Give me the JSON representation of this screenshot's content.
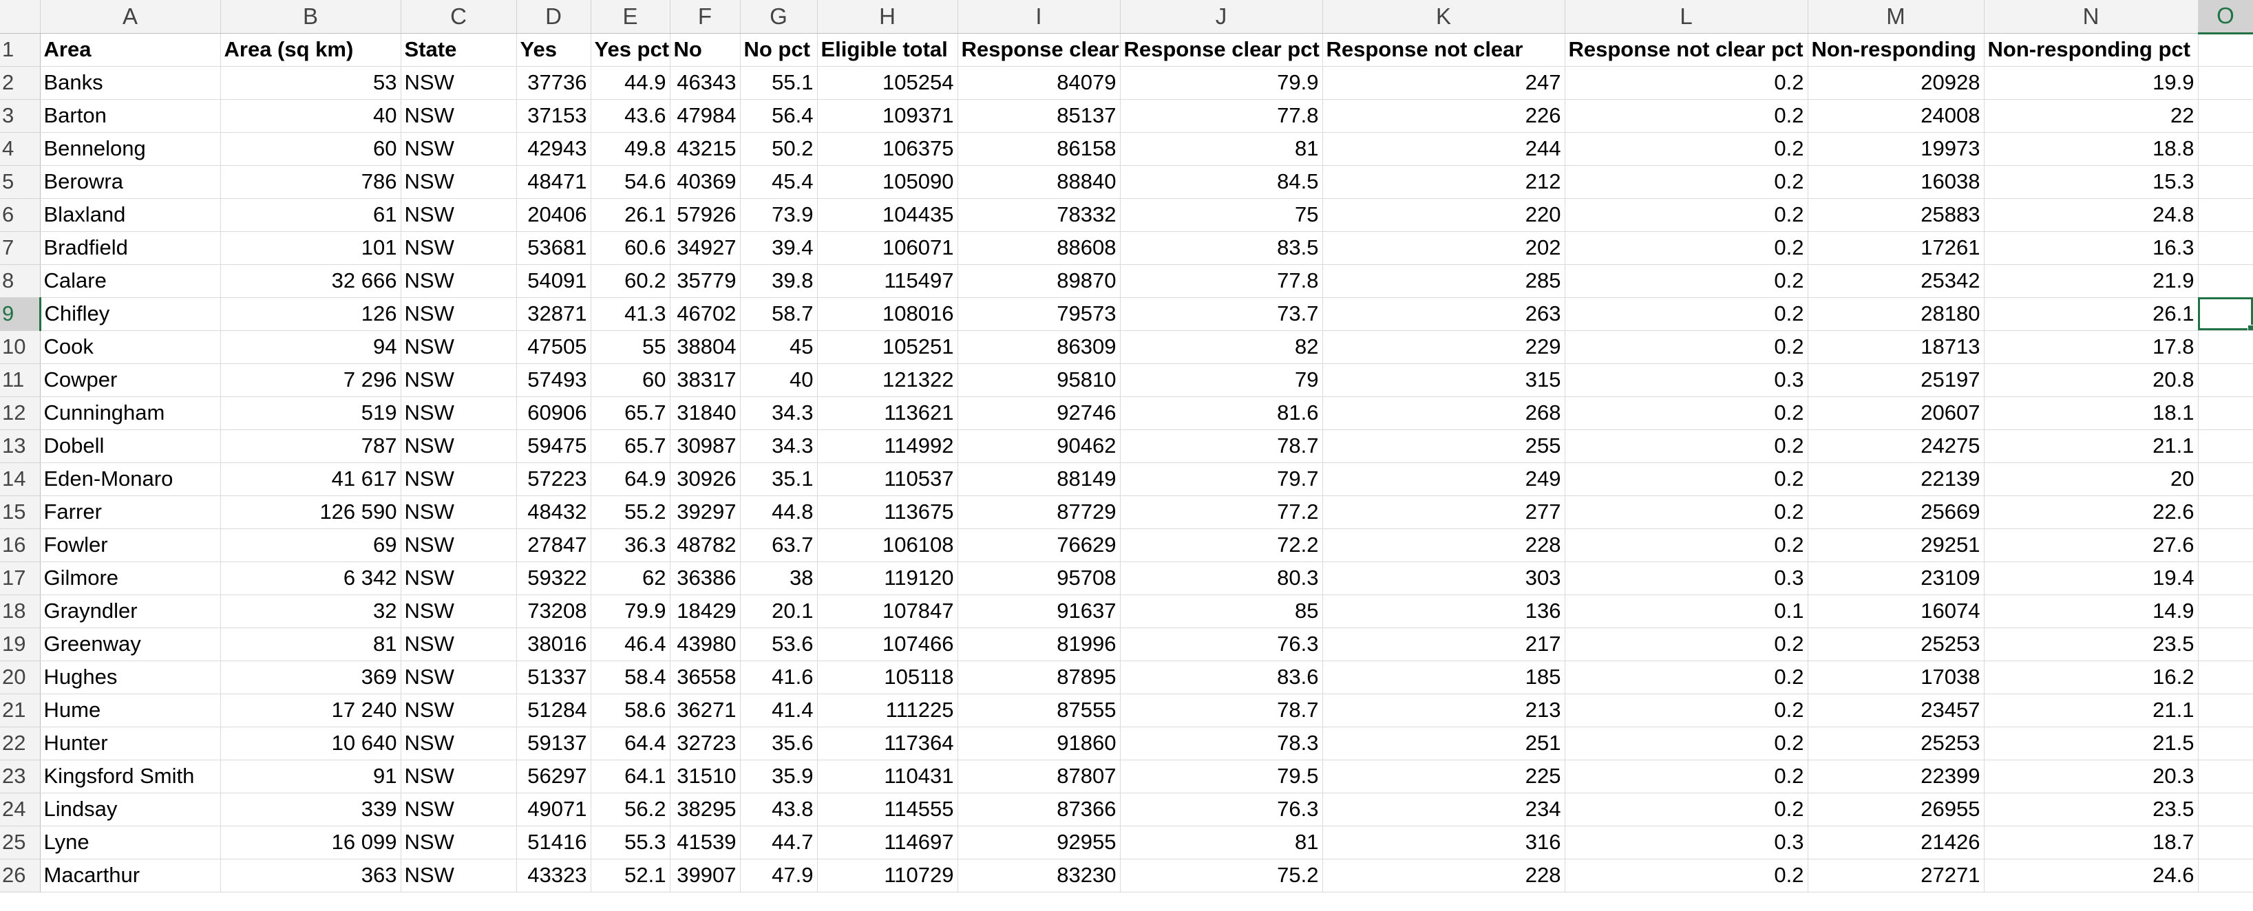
{
  "sheet": {
    "columns": [
      "A",
      "B",
      "C",
      "D",
      "E",
      "F",
      "G",
      "H",
      "I",
      "J",
      "K",
      "L",
      "M",
      "N",
      "O"
    ],
    "selected_column": "O",
    "active_cell": "O9",
    "headers": [
      "Area",
      "Area (sq km)",
      "State",
      "Yes",
      "Yes pct",
      "No",
      "No pct",
      "Eligible total",
      "Response clear",
      "Response clear pct",
      "Response not clear",
      "Response not clear pct",
      "Non-responding",
      "Non-responding pct",
      ""
    ],
    "rows": [
      [
        "Banks",
        "53",
        "NSW",
        "37736",
        "44.9",
        "46343",
        "55.1",
        "105254",
        "84079",
        "79.9",
        "247",
        "0.2",
        "20928",
        "19.9",
        ""
      ],
      [
        "Barton",
        "40",
        "NSW",
        "37153",
        "43.6",
        "47984",
        "56.4",
        "109371",
        "85137",
        "77.8",
        "226",
        "0.2",
        "24008",
        "22",
        ""
      ],
      [
        "Bennelong",
        "60",
        "NSW",
        "42943",
        "49.8",
        "43215",
        "50.2",
        "106375",
        "86158",
        "81",
        "244",
        "0.2",
        "19973",
        "18.8",
        ""
      ],
      [
        "Berowra",
        "786",
        "NSW",
        "48471",
        "54.6",
        "40369",
        "45.4",
        "105090",
        "88840",
        "84.5",
        "212",
        "0.2",
        "16038",
        "15.3",
        ""
      ],
      [
        "Blaxland",
        "61",
        "NSW",
        "20406",
        "26.1",
        "57926",
        "73.9",
        "104435",
        "78332",
        "75",
        "220",
        "0.2",
        "25883",
        "24.8",
        ""
      ],
      [
        "Bradfield",
        "101",
        "NSW",
        "53681",
        "60.6",
        "34927",
        "39.4",
        "106071",
        "88608",
        "83.5",
        "202",
        "0.2",
        "17261",
        "16.3",
        ""
      ],
      [
        "Calare",
        "32 666",
        "NSW",
        "54091",
        "60.2",
        "35779",
        "39.8",
        "115497",
        "89870",
        "77.8",
        "285",
        "0.2",
        "25342",
        "21.9",
        ""
      ],
      [
        "Chifley",
        "126",
        "NSW",
        "32871",
        "41.3",
        "46702",
        "58.7",
        "108016",
        "79573",
        "73.7",
        "263",
        "0.2",
        "28180",
        "26.1",
        ""
      ],
      [
        "Cook",
        "94",
        "NSW",
        "47505",
        "55",
        "38804",
        "45",
        "105251",
        "86309",
        "82",
        "229",
        "0.2",
        "18713",
        "17.8",
        ""
      ],
      [
        "Cowper",
        "7 296",
        "NSW",
        "57493",
        "60",
        "38317",
        "40",
        "121322",
        "95810",
        "79",
        "315",
        "0.3",
        "25197",
        "20.8",
        ""
      ],
      [
        "Cunningham",
        "519",
        "NSW",
        "60906",
        "65.7",
        "31840",
        "34.3",
        "113621",
        "92746",
        "81.6",
        "268",
        "0.2",
        "20607",
        "18.1",
        ""
      ],
      [
        "Dobell",
        "787",
        "NSW",
        "59475",
        "65.7",
        "30987",
        "34.3",
        "114992",
        "90462",
        "78.7",
        "255",
        "0.2",
        "24275",
        "21.1",
        ""
      ],
      [
        "Eden-Monaro",
        "41 617",
        "NSW",
        "57223",
        "64.9",
        "30926",
        "35.1",
        "110537",
        "88149",
        "79.7",
        "249",
        "0.2",
        "22139",
        "20",
        ""
      ],
      [
        "Farrer",
        "126 590",
        "NSW",
        "48432",
        "55.2",
        "39297",
        "44.8",
        "113675",
        "87729",
        "77.2",
        "277",
        "0.2",
        "25669",
        "22.6",
        ""
      ],
      [
        "Fowler",
        "69",
        "NSW",
        "27847",
        "36.3",
        "48782",
        "63.7",
        "106108",
        "76629",
        "72.2",
        "228",
        "0.2",
        "29251",
        "27.6",
        ""
      ],
      [
        "Gilmore",
        "6 342",
        "NSW",
        "59322",
        "62",
        "36386",
        "38",
        "119120",
        "95708",
        "80.3",
        "303",
        "0.3",
        "23109",
        "19.4",
        ""
      ],
      [
        "Grayndler",
        "32",
        "NSW",
        "73208",
        "79.9",
        "18429",
        "20.1",
        "107847",
        "91637",
        "85",
        "136",
        "0.1",
        "16074",
        "14.9",
        ""
      ],
      [
        "Greenway",
        "81",
        "NSW",
        "38016",
        "46.4",
        "43980",
        "53.6",
        "107466",
        "81996",
        "76.3",
        "217",
        "0.2",
        "25253",
        "23.5",
        ""
      ],
      [
        "Hughes",
        "369",
        "NSW",
        "51337",
        "58.4",
        "36558",
        "41.6",
        "105118",
        "87895",
        "83.6",
        "185",
        "0.2",
        "17038",
        "16.2",
        ""
      ],
      [
        "Hume",
        "17 240",
        "NSW",
        "51284",
        "58.6",
        "36271",
        "41.4",
        "111225",
        "87555",
        "78.7",
        "213",
        "0.2",
        "23457",
        "21.1",
        ""
      ],
      [
        "Hunter",
        "10 640",
        "NSW",
        "59137",
        "64.4",
        "32723",
        "35.6",
        "117364",
        "91860",
        "78.3",
        "251",
        "0.2",
        "25253",
        "21.5",
        ""
      ],
      [
        "Kingsford Smith",
        "91",
        "NSW",
        "56297",
        "64.1",
        "31510",
        "35.9",
        "110431",
        "87807",
        "79.5",
        "225",
        "0.2",
        "22399",
        "20.3",
        ""
      ],
      [
        "Lindsay",
        "339",
        "NSW",
        "49071",
        "56.2",
        "38295",
        "43.8",
        "114555",
        "87366",
        "76.3",
        "234",
        "0.2",
        "26955",
        "23.5",
        ""
      ],
      [
        "Lyne",
        "16 099",
        "NSW",
        "51416",
        "55.3",
        "41539",
        "44.7",
        "114697",
        "92955",
        "81",
        "316",
        "0.3",
        "21426",
        "18.7",
        ""
      ],
      [
        "Macarthur",
        "363",
        "NSW",
        "43323",
        "52.1",
        "39907",
        "47.9",
        "110729",
        "83230",
        "75.2",
        "228",
        "0.2",
        "27271",
        "24.6",
        ""
      ]
    ]
  }
}
